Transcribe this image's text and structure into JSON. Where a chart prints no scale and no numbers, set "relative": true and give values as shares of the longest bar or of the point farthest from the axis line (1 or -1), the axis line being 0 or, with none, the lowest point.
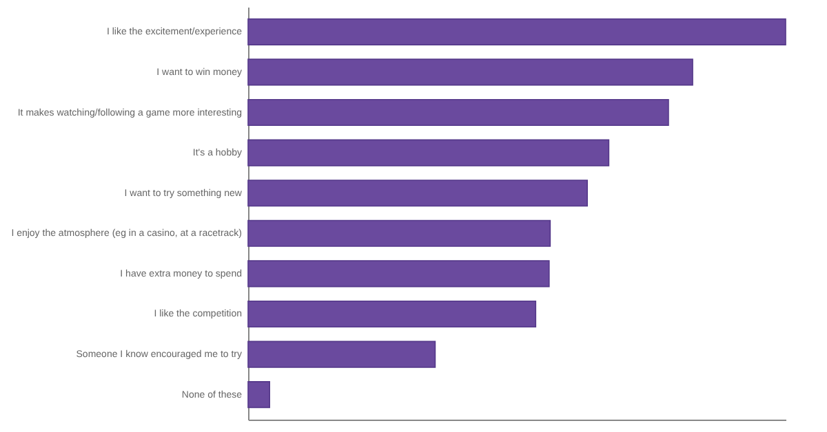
{
  "chart_data": {
    "type": "bar",
    "orientation": "horizontal",
    "relative": true,
    "categories": [
      "I like the excitement/experience",
      "I want to win money",
      "It makes watching/following a game more interesting",
      "It's a hobby",
      "I want to try something new",
      "I enjoy the atmosphere (eg in a casino, at a racetrack)",
      "I have extra money to spend",
      "I like the competition",
      "Someone I know encouraged me to try",
      "None of these"
    ],
    "values": [
      1,
      0.827,
      0.782,
      0.671,
      0.631,
      0.562,
      0.56,
      0.535,
      0.348,
      0.04
    ],
    "color": "#6a4a9e"
  }
}
